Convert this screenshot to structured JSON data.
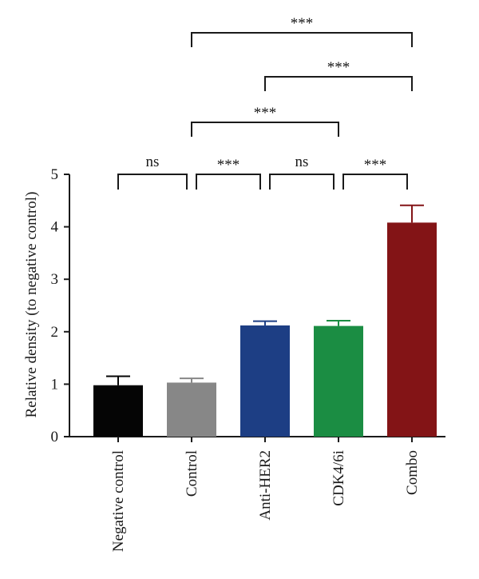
{
  "chart_data": {
    "type": "bar",
    "categories": [
      "Negative control",
      "Control",
      "Anti-HER2",
      "CDK4/6i",
      "Combo"
    ],
    "values": [
      0.98,
      1.03,
      2.12,
      2.11,
      4.08
    ],
    "errors": [
      0.17,
      0.08,
      0.08,
      0.1,
      0.33
    ],
    "colors": [
      "#050505",
      "#878787",
      "#1d3e84",
      "#1b8d43",
      "#831416"
    ],
    "ylabel": "Relative density (to negative control)",
    "xlabel": "",
    "ylim": [
      0,
      5
    ],
    "yticks": [
      0,
      1,
      2,
      3,
      4,
      5
    ],
    "grid": false,
    "significance": [
      {
        "from": 0,
        "to": 1,
        "label": "ns"
      },
      {
        "from": 1,
        "to": 2,
        "label": "***"
      },
      {
        "from": 2,
        "to": 3,
        "label": "ns"
      },
      {
        "from": 3,
        "to": 4,
        "label": "***"
      },
      {
        "from": 1,
        "to": 3,
        "label": "***"
      },
      {
        "from": 2,
        "to": 4,
        "label": "***"
      },
      {
        "from": 1,
        "to": 4,
        "label": "***"
      }
    ]
  }
}
